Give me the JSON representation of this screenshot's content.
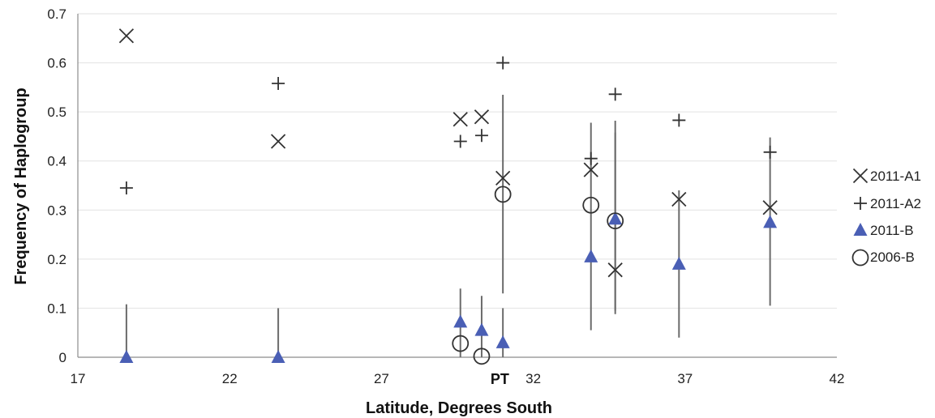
{
  "chart_data": {
    "type": "scatter",
    "xlabel": "Latitude, Degrees South",
    "ylabel": "Frequency of Haplogroup",
    "xlim": [
      17,
      42
    ],
    "ylim": [
      0,
      0.7
    ],
    "x_ticks": [
      17,
      22,
      27,
      32,
      37,
      42
    ],
    "x_tick_labels": [
      "17",
      "22",
      "27",
      "32",
      "37",
      "42"
    ],
    "y_ticks": [
      0,
      0.1,
      0.2,
      0.3,
      0.4,
      0.5,
      0.6,
      0.7
    ],
    "y_tick_labels": [
      "0",
      "0.1",
      "0.2",
      "0.3",
      "0.4",
      "0.5",
      "0.6",
      "0.7"
    ],
    "grid": "horizontal",
    "legend_position": "right",
    "annotations": [
      {
        "text": "PT",
        "x": 30.9
      }
    ],
    "series": [
      {
        "name": "2011-A1",
        "marker": "x",
        "color": "#333333",
        "points": [
          {
            "x": 18.6,
            "y": 0.655
          },
          {
            "x": 23.6,
            "y": 0.44
          },
          {
            "x": 29.6,
            "y": 0.485
          },
          {
            "x": 30.3,
            "y": 0.49
          },
          {
            "x": 31.0,
            "y": 0.365
          },
          {
            "x": 33.9,
            "y": 0.382
          },
          {
            "x": 34.7,
            "y": 0.178
          },
          {
            "x": 36.8,
            "y": 0.322
          },
          {
            "x": 39.8,
            "y": 0.305
          }
        ]
      },
      {
        "name": "2011-A2",
        "marker": "plus",
        "color": "#333333",
        "points": [
          {
            "x": 18.6,
            "y": 0.345
          },
          {
            "x": 23.6,
            "y": 0.558
          },
          {
            "x": 29.6,
            "y": 0.44
          },
          {
            "x": 30.3,
            "y": 0.452
          },
          {
            "x": 31.0,
            "y": 0.6
          },
          {
            "x": 33.9,
            "y": 0.405
          },
          {
            "x": 34.7,
            "y": 0.536
          },
          {
            "x": 36.8,
            "y": 0.483
          },
          {
            "x": 39.8,
            "y": 0.418
          }
        ]
      },
      {
        "name": "2011-B",
        "marker": "triangle",
        "color": "#4a5fb5",
        "points": [
          {
            "x": 18.6,
            "y": 0.0,
            "err_low": 0.0,
            "err_high": 0.108
          },
          {
            "x": 23.6,
            "y": 0.0,
            "err_low": 0.0,
            "err_high": 0.1
          },
          {
            "x": 29.6,
            "y": 0.072,
            "err_low": 0.0,
            "err_high": 0.14
          },
          {
            "x": 30.3,
            "y": 0.055,
            "err_low": 0.0,
            "err_high": 0.125
          },
          {
            "x": 31.0,
            "y": 0.03,
            "err_low": 0.0,
            "err_high": 0.1
          },
          {
            "x": 33.9,
            "y": 0.205,
            "err_low": 0.055,
            "err_high": 0.478
          },
          {
            "x": 34.7,
            "y": 0.282,
            "err_low": 0.088,
            "err_high": 0.458
          },
          {
            "x": 36.8,
            "y": 0.19,
            "err_low": 0.04,
            "err_high": 0.34
          },
          {
            "x": 39.8,
            "y": 0.275,
            "err_low": 0.105,
            "err_high": 0.448
          }
        ]
      },
      {
        "name": "2006-B",
        "marker": "circle",
        "color": "#333333",
        "points": [
          {
            "x": 29.6,
            "y": 0.028
          },
          {
            "x": 30.3,
            "y": 0.002
          },
          {
            "x": 31.0,
            "y": 0.332,
            "err_low": 0.13,
            "err_high": 0.535
          },
          {
            "x": 33.9,
            "y": 0.31
          },
          {
            "x": 34.7,
            "y": 0.278,
            "err_low": 0.095,
            "err_high": 0.482
          }
        ]
      }
    ]
  }
}
